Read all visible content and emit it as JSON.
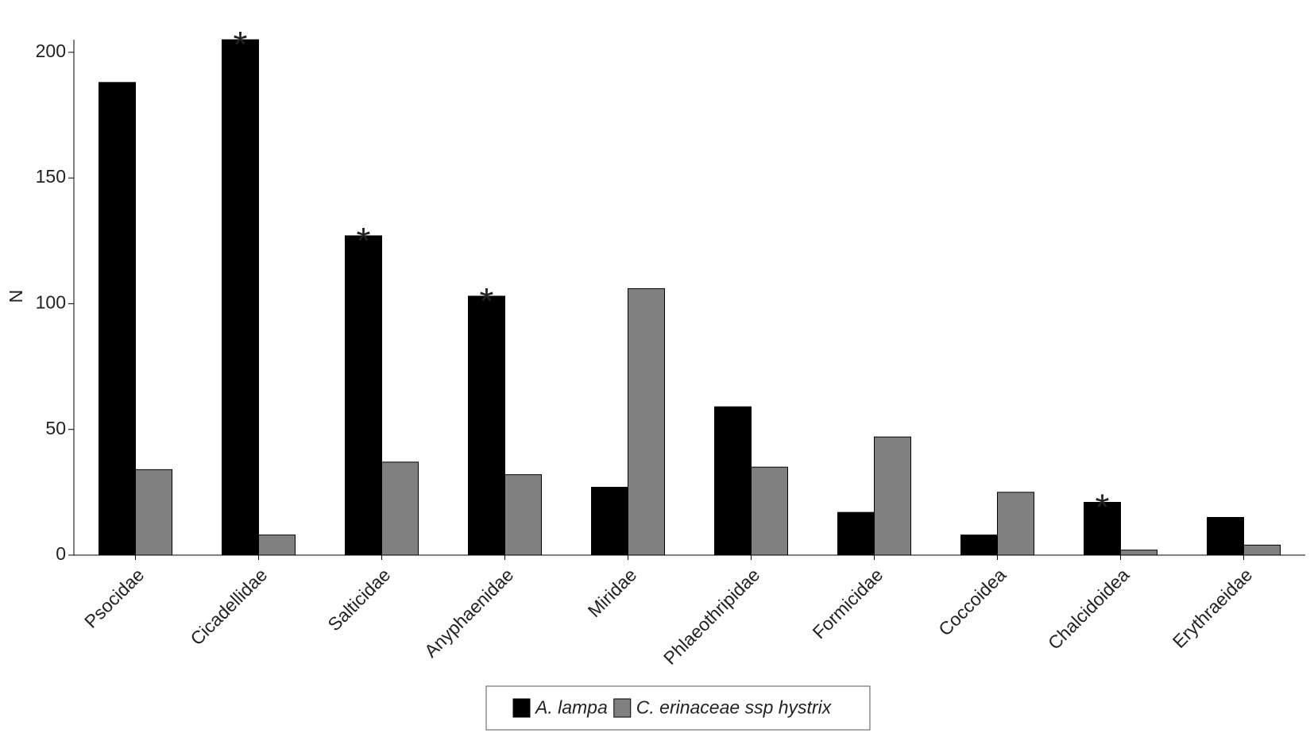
{
  "chart_data": {
    "type": "bar",
    "y_label": "N",
    "categories": [
      "Psocidae",
      "Cicadellidae",
      "Salticidae",
      "Anyphaenidae",
      "Miridae",
      "Phlaeothripidae",
      "Formicidae",
      "Coccoidea",
      "Chalcidoidea",
      "Erythraeidae"
    ],
    "series": [
      {
        "name": "A. lampa",
        "color": "#000000",
        "values": [
          188,
          205,
          127,
          103,
          27,
          59,
          17,
          8,
          21,
          15
        ]
      },
      {
        "name": "C. erinaceae ssp hystrix",
        "color": "#808080",
        "values": [
          34,
          8,
          37,
          32,
          106,
          35,
          47,
          25,
          2,
          4
        ]
      }
    ],
    "significance": [
      false,
      true,
      true,
      true,
      false,
      false,
      false,
      false,
      true,
      false
    ],
    "significance_label": "*",
    "ylim": [
      0,
      205
    ],
    "yticks": [
      0,
      50,
      100,
      150,
      200
    ],
    "grid": false,
    "legend": "bottom"
  }
}
